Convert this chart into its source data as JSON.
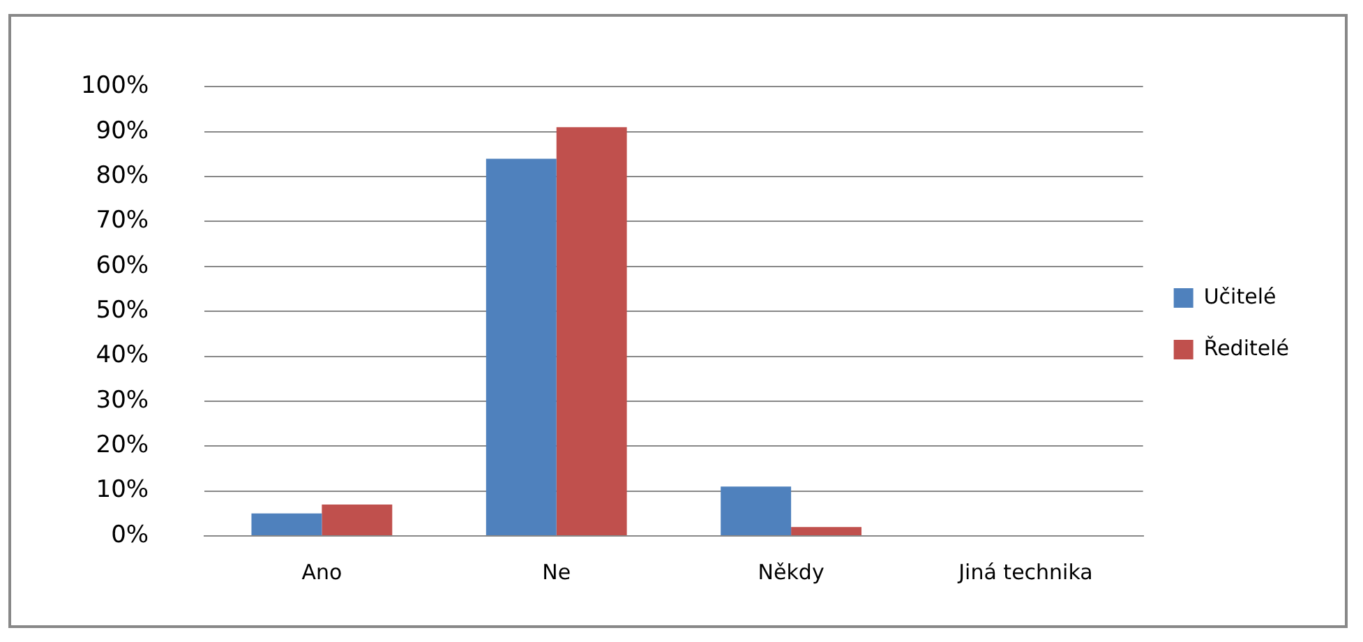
{
  "chart_data": {
    "type": "bar",
    "categories": [
      "Ano",
      "Ne",
      "Někdy",
      "Jiná technika"
    ],
    "series": [
      {
        "name": "Učitelé",
        "color": "#4f81bd",
        "values": [
          5,
          84,
          11,
          0
        ]
      },
      {
        "name": "Ředitelé",
        "color": "#c0504d",
        "values": [
          7,
          91,
          2,
          0
        ]
      }
    ],
    "ylim": [
      0,
      100
    ],
    "yticks": [
      {
        "value": 0,
        "label": "0%"
      },
      {
        "value": 10,
        "label": "10%"
      },
      {
        "value": 20,
        "label": "20%"
      },
      {
        "value": 30,
        "label": "30%"
      },
      {
        "value": 40,
        "label": "40%"
      },
      {
        "value": 50,
        "label": "50%"
      },
      {
        "value": 60,
        "label": "60%"
      },
      {
        "value": 70,
        "label": "70%"
      },
      {
        "value": 80,
        "label": "80%"
      },
      {
        "value": 90,
        "label": "90%"
      },
      {
        "value": 100,
        "label": "100%"
      }
    ],
    "grid": "y",
    "legend": "right"
  }
}
